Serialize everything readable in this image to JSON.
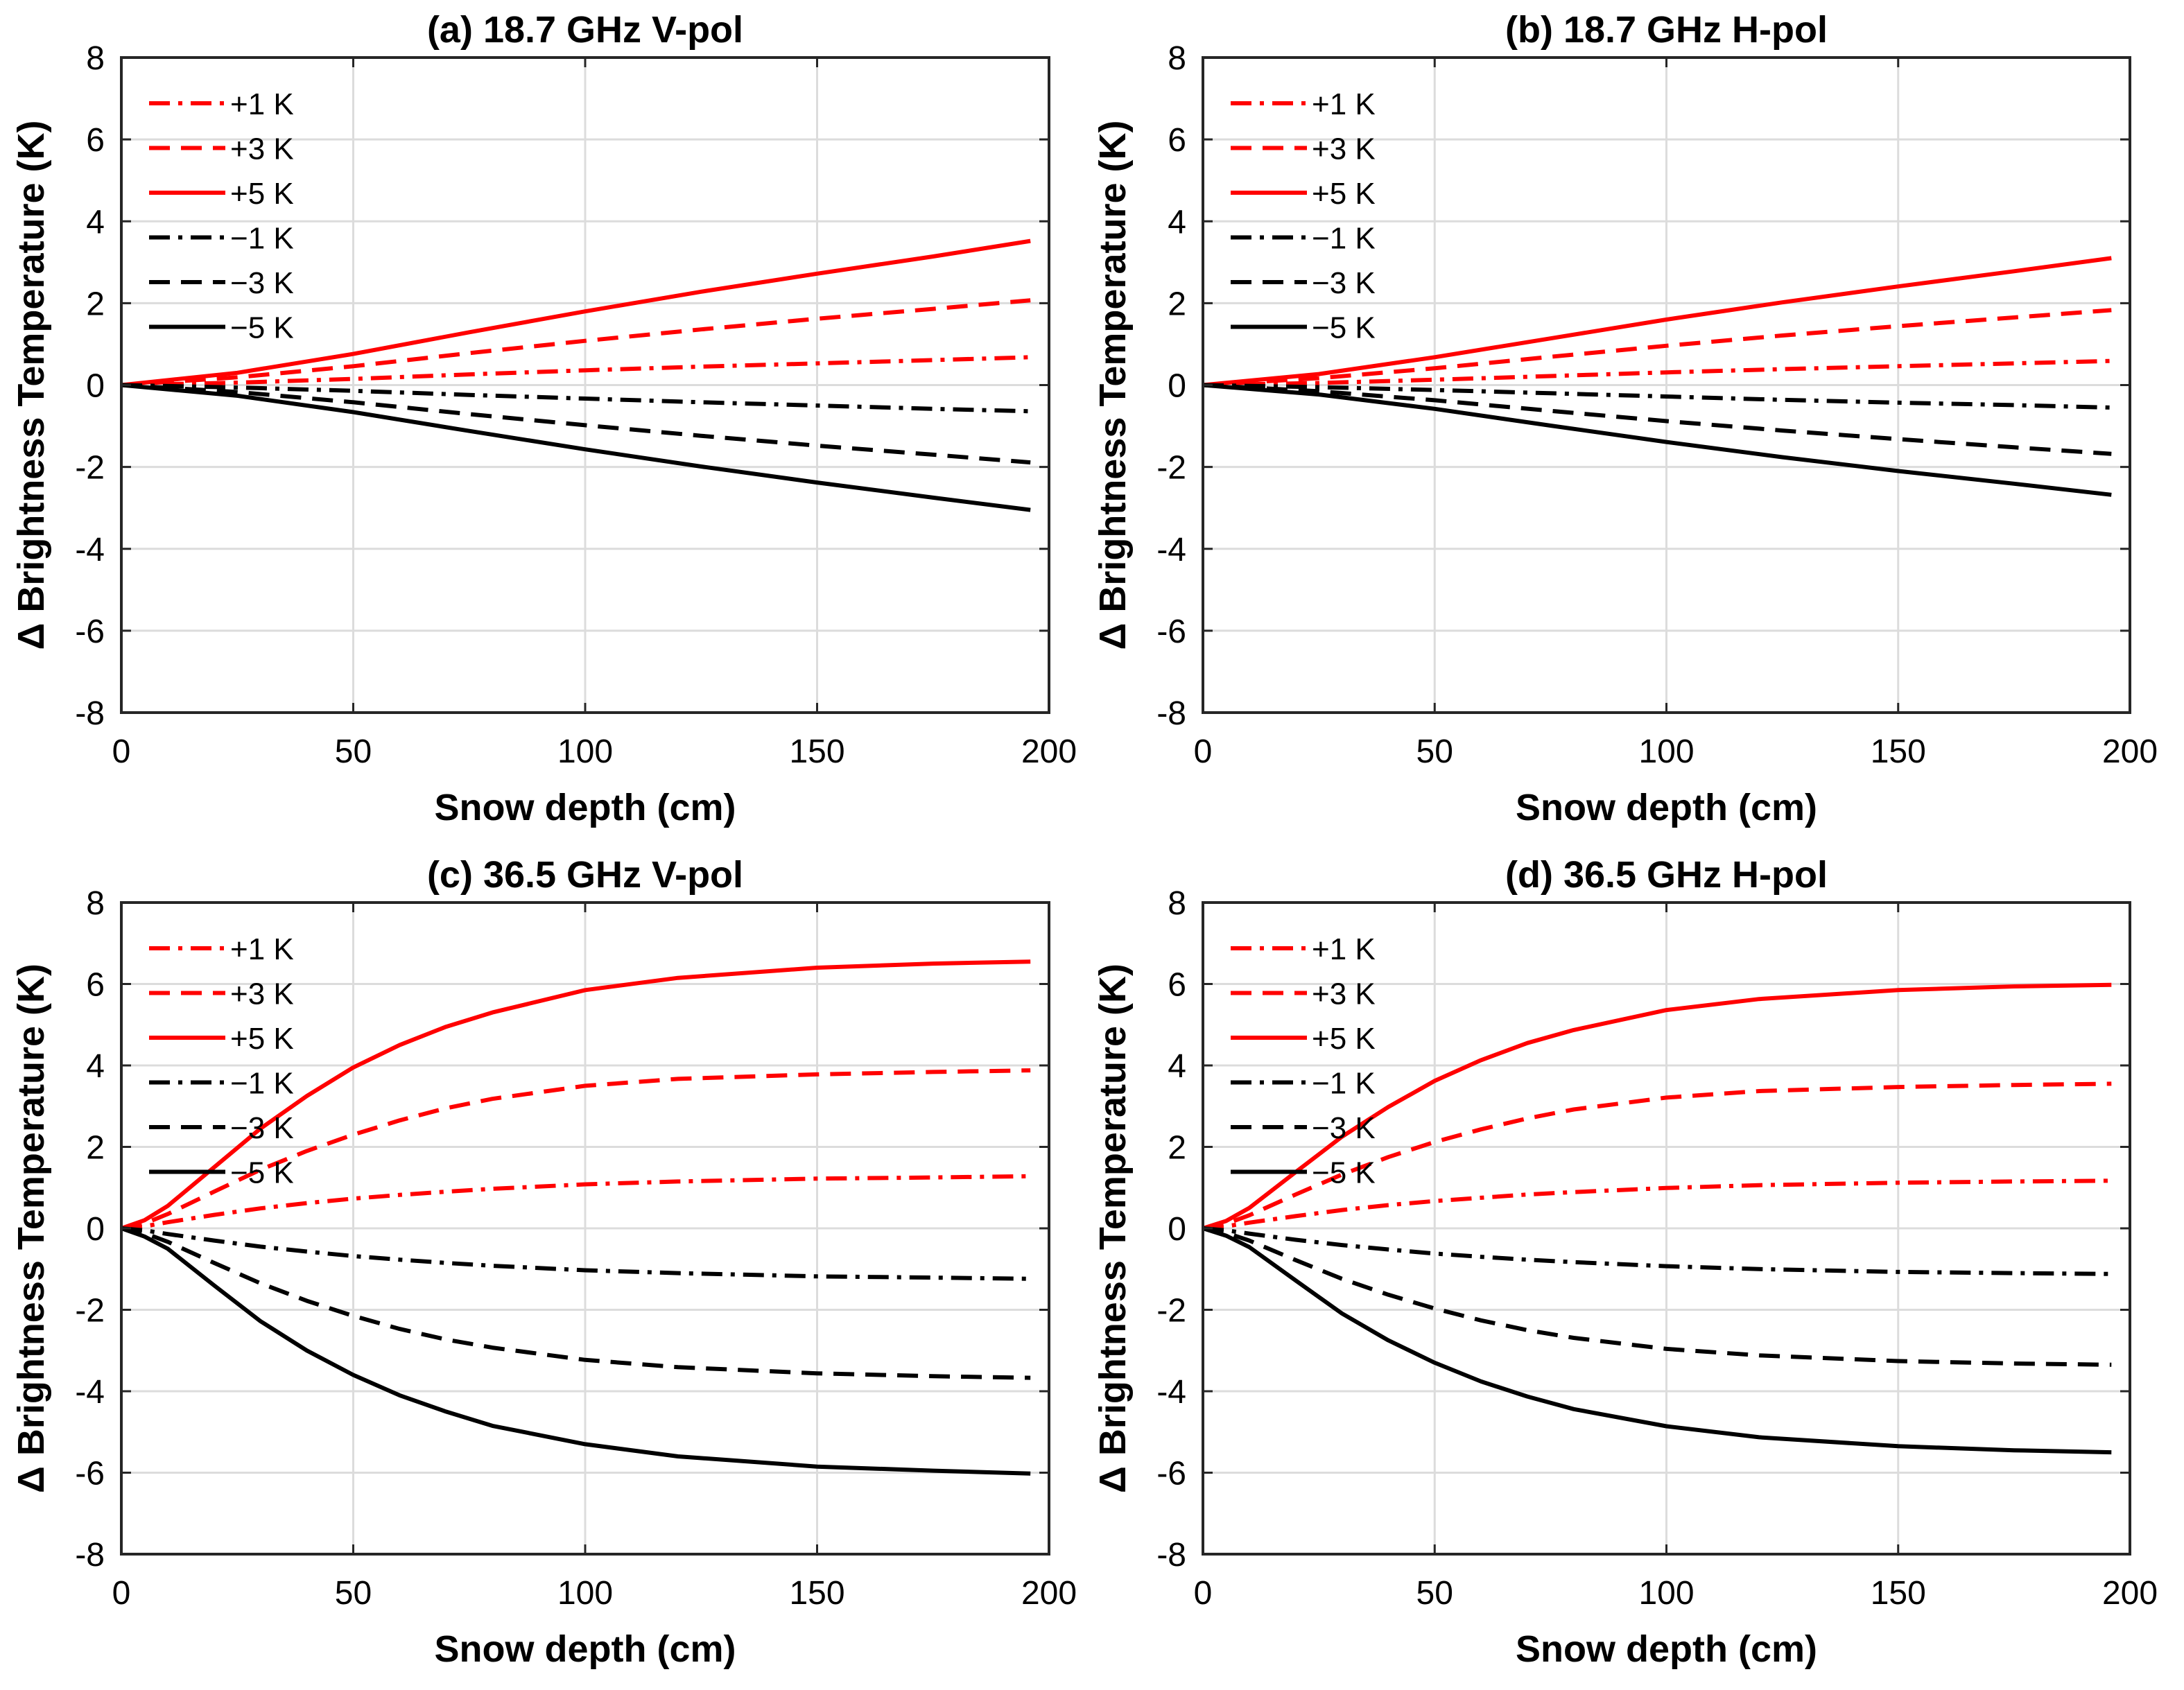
{
  "figure": {
    "colors": {
      "red": "#ff0000",
      "black": "#000000"
    },
    "chart_data": [
      {
        "type": "line",
        "title": "(a) 18.7 GHz V-pol",
        "xlabel": "Snow depth (cm)",
        "ylabel": "Δ Brightness Temperature (K)",
        "xlim": [
          0,
          200
        ],
        "ylim": [
          -8,
          8
        ],
        "xticks": [
          0,
          50,
          100,
          150,
          200
        ],
        "yticks": [
          -8,
          -6,
          -4,
          -2,
          0,
          2,
          4,
          6,
          8
        ],
        "grid": true,
        "legend_position": "top-left",
        "x": [
          0,
          25,
          50,
          75,
          100,
          125,
          150,
          175,
          196
        ],
        "series": [
          {
            "name": "+1 K",
            "color": "red",
            "dash": "dashdot",
            "values": [
              0,
              0.06,
              0.15,
              0.26,
              0.36,
              0.45,
              0.53,
              0.61,
              0.68
            ]
          },
          {
            "name": "+3 K",
            "color": "red",
            "dash": "dashed",
            "values": [
              0,
              0.19,
              0.46,
              0.78,
              1.08,
              1.36,
              1.62,
              1.86,
              2.07
            ]
          },
          {
            "name": "+5 K",
            "color": "red",
            "dash": "solid",
            "values": [
              0,
              0.3,
              0.76,
              1.29,
              1.8,
              2.28,
              2.72,
              3.14,
              3.52
            ]
          },
          {
            "name": "−1 K",
            "color": "black",
            "dash": "dashdot",
            "values": [
              0,
              -0.06,
              -0.14,
              -0.24,
              -0.33,
              -0.42,
              -0.5,
              -0.58,
              -0.64
            ]
          },
          {
            "name": "−3 K",
            "color": "black",
            "dash": "dashed",
            "values": [
              0,
              -0.17,
              -0.42,
              -0.71,
              -0.98,
              -1.24,
              -1.48,
              -1.7,
              -1.89
            ]
          },
          {
            "name": "−5 K",
            "color": "black",
            "dash": "solid",
            "values": [
              0,
              -0.26,
              -0.66,
              -1.12,
              -1.57,
              -1.99,
              -2.38,
              -2.75,
              -3.05
            ]
          }
        ]
      },
      {
        "type": "line",
        "title": "(b) 18.7 GHz H-pol",
        "xlabel": "Snow depth (cm)",
        "ylabel": "Δ Brightness Temperature (K)",
        "xlim": [
          0,
          200
        ],
        "ylim": [
          -8,
          8
        ],
        "xticks": [
          0,
          50,
          100,
          150,
          200
        ],
        "yticks": [
          -8,
          -6,
          -4,
          -2,
          0,
          2,
          4,
          6,
          8
        ],
        "grid": true,
        "legend_position": "top-left",
        "x": [
          0,
          25,
          50,
          75,
          100,
          125,
          150,
          175,
          196
        ],
        "series": [
          {
            "name": "+1 K",
            "color": "red",
            "dash": "dashdot",
            "values": [
              0,
              0.05,
              0.13,
              0.22,
              0.31,
              0.39,
              0.46,
              0.53,
              0.59
            ]
          },
          {
            "name": "+3 K",
            "color": "red",
            "dash": "dashed",
            "values": [
              0,
              0.17,
              0.41,
              0.69,
              0.96,
              1.21,
              1.44,
              1.65,
              1.83
            ]
          },
          {
            "name": "+5 K",
            "color": "red",
            "dash": "solid",
            "values": [
              0,
              0.27,
              0.68,
              1.14,
              1.6,
              2.02,
              2.41,
              2.78,
              3.1
            ]
          },
          {
            "name": "−1 K",
            "color": "black",
            "dash": "dashdot",
            "values": [
              0,
              -0.05,
              -0.12,
              -0.2,
              -0.28,
              -0.36,
              -0.43,
              -0.49,
              -0.55
            ]
          },
          {
            "name": "−3 K",
            "color": "black",
            "dash": "dashed",
            "values": [
              0,
              -0.15,
              -0.37,
              -0.63,
              -0.88,
              -1.11,
              -1.32,
              -1.52,
              -1.68
            ]
          },
          {
            "name": "−5 K",
            "color": "black",
            "dash": "solid",
            "values": [
              0,
              -0.23,
              -0.58,
              -0.99,
              -1.39,
              -1.76,
              -2.1,
              -2.41,
              -2.68
            ]
          }
        ]
      },
      {
        "type": "line",
        "title": "(c) 36.5 GHz V-pol",
        "xlabel": "Snow depth (cm)",
        "ylabel": "Δ Brightness Temperature (K)",
        "xlim": [
          0,
          200
        ],
        "ylim": [
          -8,
          8
        ],
        "xticks": [
          0,
          50,
          100,
          150,
          200
        ],
        "yticks": [
          -8,
          -6,
          -4,
          -2,
          0,
          2,
          4,
          6,
          8
        ],
        "grid": true,
        "legend_position": "top-left",
        "x": [
          0,
          5,
          10,
          20,
          30,
          40,
          50,
          60,
          70,
          80,
          100,
          120,
          150,
          175,
          196
        ],
        "series": [
          {
            "name": "+1 K",
            "color": "red",
            "dash": "dashdot",
            "values": [
              0,
              0.05,
              0.15,
              0.33,
              0.49,
              0.62,
              0.73,
              0.82,
              0.9,
              0.97,
              1.08,
              1.15,
              1.22,
              1.25,
              1.28
            ]
          },
          {
            "name": "+3 K",
            "color": "red",
            "dash": "dashed",
            "values": [
              0,
              0.12,
              0.35,
              0.9,
              1.44,
              1.9,
              2.3,
              2.65,
              2.95,
              3.18,
              3.5,
              3.67,
              3.78,
              3.84,
              3.88
            ]
          },
          {
            "name": "+5 K",
            "color": "red",
            "dash": "solid",
            "values": [
              0,
              0.2,
              0.55,
              1.5,
              2.45,
              3.25,
              3.95,
              4.5,
              4.95,
              5.3,
              5.85,
              6.15,
              6.4,
              6.5,
              6.55
            ]
          },
          {
            "name": "−1 K",
            "color": "black",
            "dash": "dashdot",
            "values": [
              0,
              -0.05,
              -0.14,
              -0.3,
              -0.45,
              -0.57,
              -0.68,
              -0.77,
              -0.85,
              -0.92,
              -1.03,
              -1.1,
              -1.18,
              -1.21,
              -1.24
            ]
          },
          {
            "name": "−3 K",
            "color": "black",
            "dash": "dashed",
            "values": [
              0,
              -0.12,
              -0.33,
              -0.85,
              -1.35,
              -1.78,
              -2.15,
              -2.47,
              -2.73,
              -2.93,
              -3.23,
              -3.41,
              -3.56,
              -3.63,
              -3.67
            ]
          },
          {
            "name": "−5 K",
            "color": "black",
            "dash": "solid",
            "values": [
              0,
              -0.2,
              -0.5,
              -1.4,
              -2.28,
              -3.0,
              -3.6,
              -4.1,
              -4.5,
              -4.85,
              -5.3,
              -5.6,
              -5.85,
              -5.95,
              -6.02
            ]
          }
        ]
      },
      {
        "type": "line",
        "title": "(d) 36.5 GHz H-pol",
        "xlabel": "Snow depth (cm)",
        "ylabel": "Δ Brightness Temperature (K)",
        "xlim": [
          0,
          200
        ],
        "ylim": [
          -8,
          8
        ],
        "xticks": [
          0,
          50,
          100,
          150,
          200
        ],
        "yticks": [
          -8,
          -6,
          -4,
          -2,
          0,
          2,
          4,
          6,
          8
        ],
        "grid": true,
        "legend_position": "top-left",
        "x": [
          0,
          5,
          10,
          20,
          30,
          40,
          50,
          60,
          70,
          80,
          100,
          120,
          150,
          175,
          196
        ],
        "series": [
          {
            "name": "+1 K",
            "color": "red",
            "dash": "dashdot",
            "values": [
              0,
              0.05,
              0.14,
              0.3,
              0.45,
              0.57,
              0.67,
              0.75,
              0.83,
              0.89,
              0.99,
              1.06,
              1.12,
              1.15,
              1.17
            ]
          },
          {
            "name": "+3 K",
            "color": "red",
            "dash": "dashed",
            "values": [
              0,
              0.11,
              0.32,
              0.83,
              1.32,
              1.75,
              2.12,
              2.43,
              2.7,
              2.92,
              3.21,
              3.37,
              3.47,
              3.52,
              3.55
            ]
          },
          {
            "name": "+5 K",
            "color": "red",
            "dash": "solid",
            "values": [
              0,
              0.18,
              0.5,
              1.38,
              2.25,
              2.98,
              3.62,
              4.13,
              4.55,
              4.87,
              5.36,
              5.63,
              5.85,
              5.94,
              5.98
            ]
          },
          {
            "name": "−1 K",
            "color": "black",
            "dash": "dashdot",
            "values": [
              0,
              -0.05,
              -0.13,
              -0.28,
              -0.41,
              -0.52,
              -0.62,
              -0.7,
              -0.77,
              -0.83,
              -0.93,
              -1.0,
              -1.07,
              -1.1,
              -1.12
            ]
          },
          {
            "name": "−3 K",
            "color": "black",
            "dash": "dashed",
            "values": [
              0,
              -0.11,
              -0.3,
              -0.78,
              -1.24,
              -1.63,
              -1.97,
              -2.26,
              -2.5,
              -2.69,
              -2.96,
              -3.12,
              -3.26,
              -3.32,
              -3.35
            ]
          },
          {
            "name": "−5 K",
            "color": "black",
            "dash": "solid",
            "values": [
              0,
              -0.18,
              -0.46,
              -1.28,
              -2.09,
              -2.75,
              -3.3,
              -3.76,
              -4.13,
              -4.44,
              -4.86,
              -5.13,
              -5.35,
              -5.45,
              -5.5
            ]
          }
        ]
      }
    ]
  }
}
